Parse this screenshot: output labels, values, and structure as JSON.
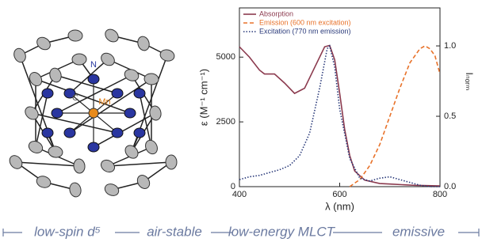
{
  "chart_data": {
    "type": "line",
    "xlabel": "λ (nm)",
    "ylabel": "ε (M⁻¹ cm⁻¹)",
    "y2label": "Iₙₒᵣₘ",
    "xlim": [
      400,
      800
    ],
    "xticks": [
      400,
      600,
      800
    ],
    "ylim": [
      0,
      6900
    ],
    "yticks": [
      0,
      2500,
      5000
    ],
    "y2lim": [
      0,
      1.27
    ],
    "y2ticks": [
      {
        "value": 0,
        "label": "0.0"
      },
      {
        "value": 0.5,
        "label": "0.5"
      },
      {
        "value": 1,
        "label": "1.0"
      }
    ],
    "legend": "upper left",
    "series": [
      {
        "name": "Absorption",
        "color": "#8b3a4e",
        "style": "solid",
        "x": [
          400,
          420,
          440,
          450,
          470,
          490,
          510,
          530,
          550,
          570,
          580,
          590,
          600,
          610,
          620,
          630,
          650,
          680,
          700,
          750,
          800
        ],
        "values": [
          5400,
          5000,
          4500,
          4350,
          4350,
          4000,
          3600,
          3800,
          4600,
          5400,
          5450,
          4900,
          3600,
          2200,
          1200,
          600,
          250,
          120,
          100,
          50,
          30
        ]
      },
      {
        "name": "Emission (600 nm excitation)",
        "color": "#e8722a",
        "style": "dashed",
        "axis": "y2",
        "x": [
          620,
          640,
          660,
          680,
          700,
          720,
          740,
          760,
          770,
          780,
          790,
          800
        ],
        "values": [
          0,
          0.05,
          0.15,
          0.3,
          0.5,
          0.7,
          0.88,
          0.98,
          1.0,
          0.98,
          0.93,
          0.8
        ]
      },
      {
        "name": "Excitation (770 nm emission)",
        "color": "#2a3a7a",
        "style": "dotted",
        "axis": "y2",
        "x": [
          400,
          420,
          440,
          460,
          480,
          500,
          520,
          540,
          560,
          575,
          580,
          590,
          600,
          620,
          640,
          660,
          680,
          700,
          720,
          740,
          760,
          780,
          800
        ],
        "values": [
          0.05,
          0.07,
          0.08,
          0.1,
          0.12,
          0.15,
          0.22,
          0.38,
          0.7,
          0.98,
          1.0,
          0.85,
          0.55,
          0.2,
          0.06,
          0.04,
          0.06,
          0.07,
          0.05,
          0.03,
          0.01,
          0,
          0
        ]
      }
    ]
  },
  "structure": {
    "labels": [
      "N",
      "C",
      "Mn"
    ]
  },
  "banner": [
    "low-spin d⁵",
    "air-stable",
    "low-energy MLCT",
    "emissive"
  ]
}
